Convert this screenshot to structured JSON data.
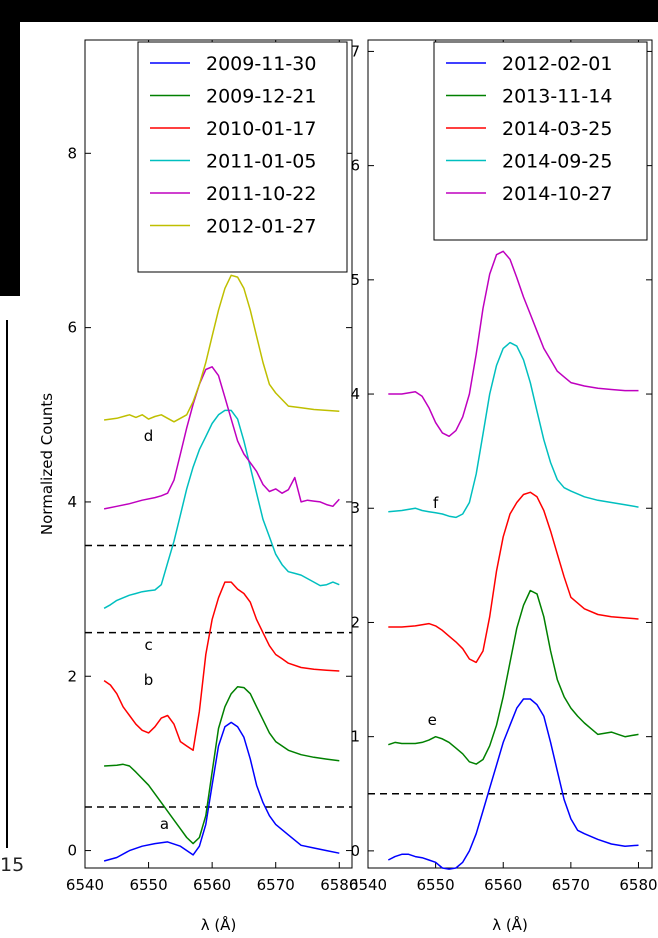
{
  "page": {
    "edge_digit": "15"
  },
  "chart_data": [
    {
      "type": "line",
      "panel": "left",
      "xlabel": "λ (Å)",
      "ylabel": "Normalized Counts",
      "xlim": [
        6540,
        6582
      ],
      "ylim": [
        -0.2,
        9.3
      ],
      "xticks": [
        6540,
        6550,
        6560,
        6570,
        6580
      ],
      "yticks": [
        0,
        2,
        4,
        6,
        8
      ],
      "legend_position": "top-right",
      "dashed_levels": [
        0.5,
        2.5,
        3.5
      ],
      "annotations": [
        {
          "text": "a",
          "x": 6552.5,
          "y": 0.25
        },
        {
          "text": "b",
          "x": 6550.0,
          "y": 1.9
        },
        {
          "text": "c",
          "x": 6550.0,
          "y": 2.3
        },
        {
          "text": "d",
          "x": 6550.0,
          "y": 4.7
        }
      ],
      "series": [
        {
          "name": "2009-11-30",
          "color": "#0000ff",
          "x": [
            6543,
            6545,
            6547,
            6549,
            6551,
            6553,
            6555,
            6557,
            6558,
            6559,
            6560,
            6561,
            6562,
            6563,
            6564,
            6565,
            6566,
            6567,
            6568,
            6569,
            6570,
            6572,
            6574,
            6576,
            6578,
            6580
          ],
          "y": [
            -0.12,
            -0.08,
            0.0,
            0.05,
            0.08,
            0.1,
            0.05,
            -0.05,
            0.05,
            0.3,
            0.75,
            1.2,
            1.42,
            1.47,
            1.42,
            1.3,
            1.05,
            0.75,
            0.55,
            0.4,
            0.3,
            0.18,
            0.06,
            0.03,
            0.0,
            -0.03
          ]
        },
        {
          "name": "2009-12-21",
          "color": "#008000",
          "x": [
            6543,
            6545,
            6546,
            6547,
            6548,
            6550,
            6552,
            6554,
            6555,
            6556,
            6557,
            6558,
            6559,
            6560,
            6561,
            6562,
            6563,
            6564,
            6565,
            6566,
            6567,
            6568,
            6569,
            6570,
            6572,
            6574,
            6576,
            6578,
            6580
          ],
          "y": [
            0.97,
            0.98,
            0.99,
            0.97,
            0.9,
            0.75,
            0.55,
            0.35,
            0.25,
            0.15,
            0.08,
            0.15,
            0.4,
            0.9,
            1.4,
            1.65,
            1.8,
            1.88,
            1.87,
            1.8,
            1.65,
            1.5,
            1.35,
            1.25,
            1.15,
            1.1,
            1.07,
            1.05,
            1.03
          ]
        },
        {
          "name": "2010-01-17",
          "color": "#ff0000",
          "x": [
            6543,
            6544,
            6545,
            6546,
            6547,
            6548,
            6549,
            6550,
            6551,
            6552,
            6553,
            6554,
            6555,
            6556,
            6557,
            6558,
            6559,
            6560,
            6561,
            6562,
            6563,
            6564,
            6565,
            6566,
            6567,
            6568,
            6569,
            6570,
            6571,
            6572,
            6574,
            6576,
            6578,
            6580
          ],
          "y": [
            1.95,
            1.9,
            1.8,
            1.65,
            1.55,
            1.45,
            1.38,
            1.35,
            1.42,
            1.52,
            1.55,
            1.45,
            1.25,
            1.2,
            1.15,
            1.6,
            2.25,
            2.65,
            2.9,
            3.08,
            3.08,
            3.0,
            2.95,
            2.85,
            2.65,
            2.5,
            2.35,
            2.25,
            2.2,
            2.15,
            2.1,
            2.08,
            2.07,
            2.06
          ]
        },
        {
          "name": "2011-01-05",
          "color": "#00bfbf",
          "x": [
            6543,
            6544,
            6545,
            6546,
            6547,
            6548,
            6549,
            6550,
            6551,
            6552,
            6553,
            6554,
            6555,
            6556,
            6557,
            6558,
            6559,
            6560,
            6561,
            6562,
            6563,
            6564,
            6565,
            6566,
            6567,
            6568,
            6569,
            6570,
            6571,
            6572,
            6573,
            6574,
            6575,
            6576,
            6577,
            6578,
            6579,
            6580
          ],
          "y": [
            2.78,
            2.82,
            2.87,
            2.9,
            2.93,
            2.95,
            2.97,
            2.98,
            2.99,
            3.05,
            3.3,
            3.55,
            3.85,
            4.15,
            4.4,
            4.6,
            4.75,
            4.9,
            5.0,
            5.05,
            5.05,
            4.95,
            4.7,
            4.4,
            4.1,
            3.8,
            3.6,
            3.4,
            3.28,
            3.2,
            3.18,
            3.16,
            3.12,
            3.08,
            3.04,
            3.05,
            3.08,
            3.05
          ]
        },
        {
          "name": "2011-10-22",
          "color": "#bf00bf",
          "x": [
            6543,
            6545,
            6547,
            6549,
            6551,
            6552,
            6553,
            6554,
            6555,
            6556,
            6557,
            6558,
            6559,
            6560,
            6561,
            6562,
            6563,
            6564,
            6565,
            6566,
            6567,
            6568,
            6569,
            6570,
            6571,
            6572,
            6573,
            6574,
            6575,
            6576,
            6577,
            6578,
            6579,
            6580
          ],
          "y": [
            3.92,
            3.95,
            3.98,
            4.02,
            4.05,
            4.07,
            4.1,
            4.25,
            4.55,
            4.85,
            5.12,
            5.35,
            5.52,
            5.55,
            5.45,
            5.2,
            4.95,
            4.7,
            4.55,
            4.45,
            4.35,
            4.2,
            4.12,
            4.15,
            4.1,
            4.14,
            4.28,
            4.0,
            4.02,
            4.01,
            4.0,
            3.97,
            3.95,
            4.03
          ]
        },
        {
          "name": "2012-01-27",
          "color": "#bfbf00",
          "x": [
            6543,
            6545,
            6547,
            6548,
            6549,
            6550,
            6551,
            6552,
            6553,
            6554,
            6555,
            6556,
            6557,
            6558,
            6559,
            6560,
            6561,
            6562,
            6563,
            6564,
            6565,
            6566,
            6567,
            6568,
            6569,
            6570,
            6572,
            6574,
            6576,
            6578,
            6580
          ],
          "y": [
            4.94,
            4.96,
            5.0,
            4.97,
            5.0,
            4.95,
            4.98,
            5.0,
            4.96,
            4.92,
            4.96,
            5.0,
            5.15,
            5.35,
            5.6,
            5.9,
            6.2,
            6.45,
            6.6,
            6.58,
            6.45,
            6.2,
            5.9,
            5.6,
            5.35,
            5.25,
            5.1,
            5.08,
            5.06,
            5.05,
            5.04
          ]
        }
      ]
    },
    {
      "type": "line",
      "panel": "right",
      "xlabel": "λ (Å)",
      "ylabel": "",
      "xlim": [
        6540,
        6582
      ],
      "ylim": [
        -0.15,
        7.1
      ],
      "xticks": [
        6540,
        6550,
        6560,
        6570,
        6580
      ],
      "yticks": [
        0,
        1,
        2,
        3,
        4,
        5,
        6,
        7
      ],
      "legend_position": "top-right",
      "dashed_levels": [
        0.5
      ],
      "annotations": [
        {
          "text": "e",
          "x": 6549.5,
          "y": 1.1
        },
        {
          "text": "f",
          "x": 6550.0,
          "y": 3.0
        }
      ],
      "series": [
        {
          "name": "2012-02-01",
          "color": "#0000ff",
          "x": [
            6543,
            6544,
            6545,
            6546,
            6547,
            6548,
            6549,
            6550,
            6551,
            6552,
            6553,
            6554,
            6555,
            6556,
            6557,
            6558,
            6559,
            6560,
            6561,
            6562,
            6563,
            6564,
            6565,
            6566,
            6567,
            6568,
            6569,
            6570,
            6571,
            6572,
            6574,
            6576,
            6578,
            6580
          ],
          "y": [
            -0.08,
            -0.05,
            -0.03,
            -0.03,
            -0.05,
            -0.06,
            -0.08,
            -0.1,
            -0.15,
            -0.16,
            -0.15,
            -0.1,
            0.0,
            0.15,
            0.35,
            0.55,
            0.75,
            0.95,
            1.1,
            1.25,
            1.33,
            1.33,
            1.28,
            1.18,
            0.95,
            0.7,
            0.45,
            0.28,
            0.18,
            0.15,
            0.1,
            0.06,
            0.04,
            0.05
          ]
        },
        {
          "name": "2013-11-14",
          "color": "#008000",
          "x": [
            6543,
            6544,
            6545,
            6546,
            6547,
            6548,
            6549,
            6550,
            6551,
            6552,
            6553,
            6554,
            6555,
            6556,
            6557,
            6558,
            6559,
            6560,
            6561,
            6562,
            6563,
            6564,
            6565,
            6566,
            6567,
            6568,
            6569,
            6570,
            6571,
            6572,
            6573,
            6574,
            6575,
            6576,
            6577,
            6578,
            6579,
            6580
          ],
          "y": [
            0.93,
            0.95,
            0.94,
            0.94,
            0.94,
            0.95,
            0.97,
            1.0,
            0.98,
            0.95,
            0.9,
            0.85,
            0.78,
            0.76,
            0.8,
            0.92,
            1.1,
            1.35,
            1.65,
            1.95,
            2.15,
            2.28,
            2.25,
            2.05,
            1.75,
            1.5,
            1.35,
            1.25,
            1.18,
            1.12,
            1.07,
            1.02,
            1.03,
            1.04,
            1.02,
            1.0,
            1.01,
            1.02
          ]
        },
        {
          "name": "2014-03-25",
          "color": "#ff0000",
          "x": [
            6543,
            6545,
            6547,
            6548,
            6549,
            6550,
            6551,
            6552,
            6553,
            6554,
            6555,
            6556,
            6557,
            6558,
            6559,
            6560,
            6561,
            6562,
            6563,
            6564,
            6565,
            6566,
            6567,
            6568,
            6569,
            6570,
            6572,
            6574,
            6576,
            6578,
            6580
          ],
          "y": [
            1.96,
            1.96,
            1.97,
            1.98,
            1.99,
            1.97,
            1.93,
            1.88,
            1.83,
            1.77,
            1.68,
            1.65,
            1.75,
            2.05,
            2.45,
            2.75,
            2.95,
            3.05,
            3.12,
            3.14,
            3.1,
            2.98,
            2.8,
            2.6,
            2.4,
            2.22,
            2.12,
            2.07,
            2.05,
            2.04,
            2.03
          ]
        },
        {
          "name": "2014-09-25",
          "color": "#00bfbf",
          "x": [
            6543,
            6545,
            6547,
            6548,
            6549,
            6550,
            6551,
            6552,
            6553,
            6554,
            6555,
            6556,
            6557,
            6558,
            6559,
            6560,
            6561,
            6562,
            6563,
            6564,
            6565,
            6566,
            6567,
            6568,
            6569,
            6570,
            6572,
            6574,
            6576,
            6578,
            6580
          ],
          "y": [
            2.97,
            2.98,
            3.0,
            2.98,
            2.97,
            2.96,
            2.95,
            2.93,
            2.92,
            2.95,
            3.05,
            3.3,
            3.65,
            4.0,
            4.25,
            4.4,
            4.45,
            4.42,
            4.3,
            4.1,
            3.85,
            3.6,
            3.4,
            3.25,
            3.18,
            3.15,
            3.1,
            3.07,
            3.05,
            3.03,
            3.01
          ]
        },
        {
          "name": "2014-10-27",
          "color": "#bf00bf",
          "x": [
            6543,
            6545,
            6547,
            6548,
            6549,
            6550,
            6551,
            6552,
            6553,
            6554,
            6555,
            6556,
            6557,
            6558,
            6559,
            6560,
            6561,
            6562,
            6563,
            6564,
            6565,
            6566,
            6567,
            6568,
            6569,
            6570,
            6572,
            6574,
            6576,
            6578,
            6580
          ],
          "y": [
            4.0,
            4.0,
            4.02,
            3.98,
            3.88,
            3.75,
            3.66,
            3.63,
            3.68,
            3.8,
            4.0,
            4.35,
            4.75,
            5.05,
            5.22,
            5.25,
            5.18,
            5.02,
            4.85,
            4.7,
            4.55,
            4.4,
            4.3,
            4.2,
            4.15,
            4.1,
            4.07,
            4.05,
            4.04,
            4.03,
            4.03
          ]
        }
      ]
    }
  ]
}
